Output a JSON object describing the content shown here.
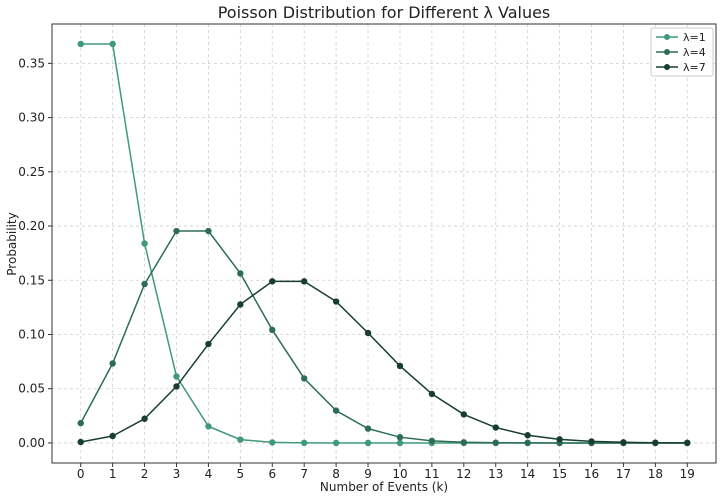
{
  "chart_data": {
    "type": "line",
    "title": "Poisson Distribution for Different λ Values",
    "xlabel": "Number of Events (k)",
    "ylabel": "Probability",
    "x": [
      0,
      1,
      2,
      3,
      4,
      5,
      6,
      7,
      8,
      9,
      10,
      11,
      12,
      13,
      14,
      15,
      16,
      17,
      18,
      19
    ],
    "xlim": [
      -0.9,
      19.9
    ],
    "ylim": [
      -0.0185,
      0.3863
    ],
    "yticks": [
      0.0,
      0.05,
      0.1,
      0.15,
      0.2,
      0.25,
      0.3,
      0.35
    ],
    "ytick_labels": [
      "0.00",
      "0.05",
      "0.10",
      "0.15",
      "0.20",
      "0.25",
      "0.30",
      "0.35"
    ],
    "grid": true,
    "legend_position": "top-right",
    "series": [
      {
        "name": "λ=1",
        "color": "#3f9a78",
        "values": [
          0.3679,
          0.3679,
          0.1839,
          0.0613,
          0.0153,
          0.0031,
          0.0005,
          0.0001,
          0.0,
          0.0,
          0.0,
          0.0,
          0.0,
          0.0,
          0.0,
          0.0,
          0.0,
          0.0,
          0.0,
          0.0
        ]
      },
      {
        "name": "λ=4",
        "color": "#2c6e53",
        "values": [
          0.0183,
          0.0733,
          0.1465,
          0.1954,
          0.1954,
          0.1563,
          0.1042,
          0.0595,
          0.0298,
          0.0132,
          0.0053,
          0.0019,
          0.0006,
          0.0002,
          0.0001,
          0.0,
          0.0,
          0.0,
          0.0,
          0.0
        ]
      },
      {
        "name": "λ=7",
        "color": "#173f31",
        "values": [
          0.0009,
          0.0064,
          0.0223,
          0.0521,
          0.0912,
          0.1277,
          0.149,
          0.149,
          0.1304,
          0.1014,
          0.071,
          0.0452,
          0.0263,
          0.0142,
          0.0071,
          0.0033,
          0.0014,
          0.0006,
          0.0002,
          0.0001
        ]
      }
    ]
  }
}
